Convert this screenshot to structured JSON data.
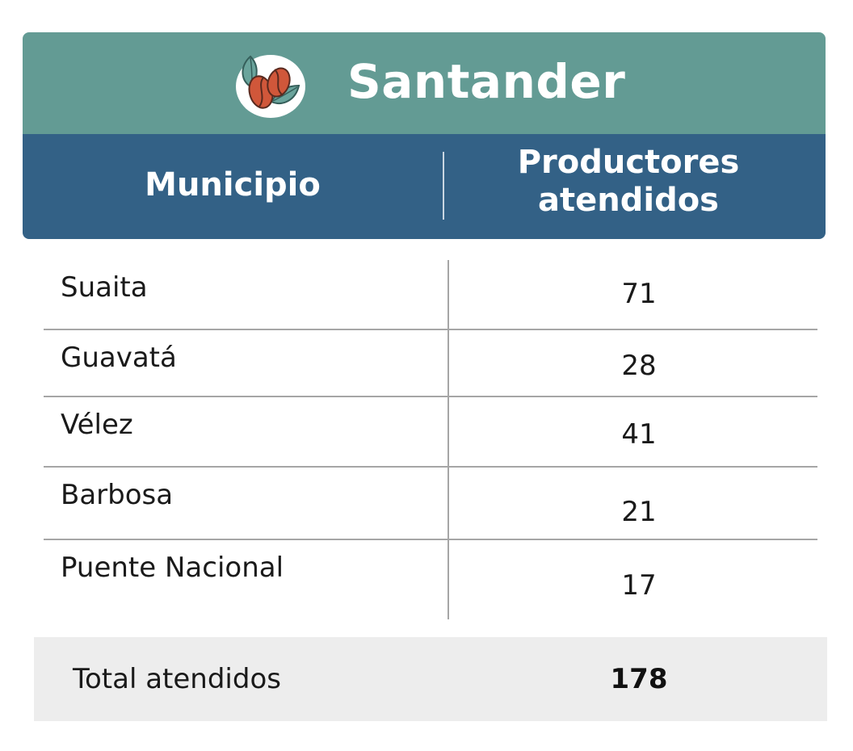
{
  "header": {
    "title": "Santander",
    "logo_icon": "coffee-bean-icon",
    "col_municipio": "Municipio",
    "col_productores_line1": "Productores",
    "col_productores_line2": "atendidos"
  },
  "rows": [
    {
      "municipio": "Suaita",
      "productores": "71"
    },
    {
      "municipio": "Guavatá",
      "productores": "28"
    },
    {
      "municipio": "Vélez",
      "productores": "41"
    },
    {
      "municipio": "Barbosa",
      "productores": "21"
    },
    {
      "municipio": "Puente Nacional",
      "productores": "17"
    }
  ],
  "total": {
    "label": "Total atendidos",
    "value": "178"
  },
  "colors": {
    "title_bar": "#639b94",
    "header_bar": "#336186",
    "total_bg": "#ededed",
    "bean": "#d0573a",
    "leaf": "#6aa49c"
  }
}
